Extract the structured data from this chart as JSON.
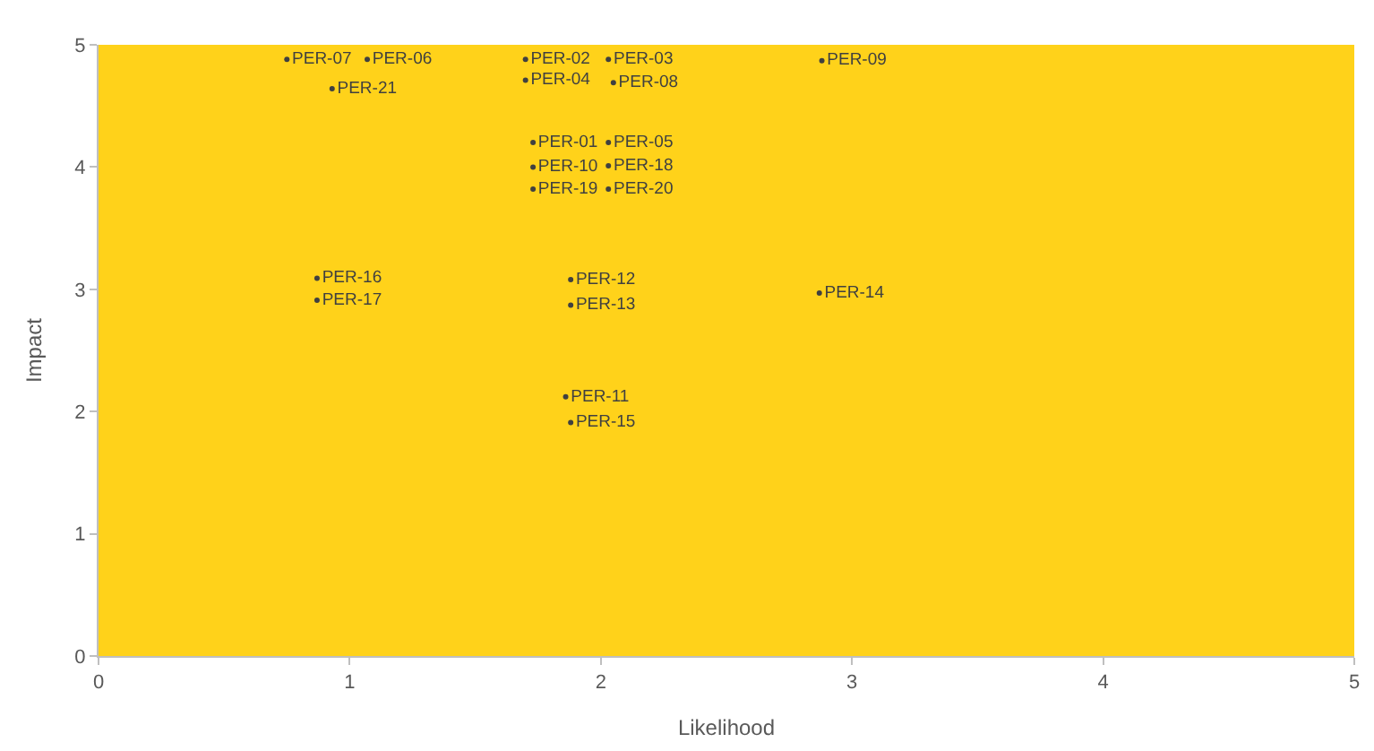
{
  "chart_data": {
    "type": "scatter",
    "xlabel": "Likelihood",
    "ylabel": "Impact",
    "x": [
      0.75,
      1.07,
      0.93,
      1.7,
      2.03,
      1.7,
      2.05,
      2.88,
      1.73,
      2.03,
      1.73,
      2.03,
      1.73,
      2.03,
      0.87,
      0.87,
      1.88,
      1.88,
      2.87,
      1.86,
      1.88
    ],
    "values": [
      4.88,
      4.88,
      4.64,
      4.88,
      4.88,
      4.71,
      4.69,
      4.87,
      4.2,
      4.2,
      4.0,
      4.01,
      3.82,
      3.82,
      3.09,
      2.91,
      3.08,
      2.87,
      2.97,
      2.12,
      1.91
    ],
    "value_labels": [
      "PER-07",
      "PER-06",
      "PER-21",
      "PER-02",
      "PER-03",
      "PER-04",
      "PER-08",
      "PER-09",
      "PER-01",
      "PER-05",
      "PER-10",
      "PER-18",
      "PER-19",
      "PER-20",
      "PER-16",
      "PER-17",
      "PER-12",
      "PER-13",
      "PER-14",
      "PER-11",
      "PER-15"
    ],
    "marker": "circle",
    "xlim": [
      0,
      5
    ],
    "ylim": [
      0,
      5
    ],
    "xticks": [
      0,
      1,
      2,
      3,
      4,
      5
    ],
    "yticks": [
      0,
      1,
      2,
      3,
      4,
      5
    ],
    "grid": false
  }
}
